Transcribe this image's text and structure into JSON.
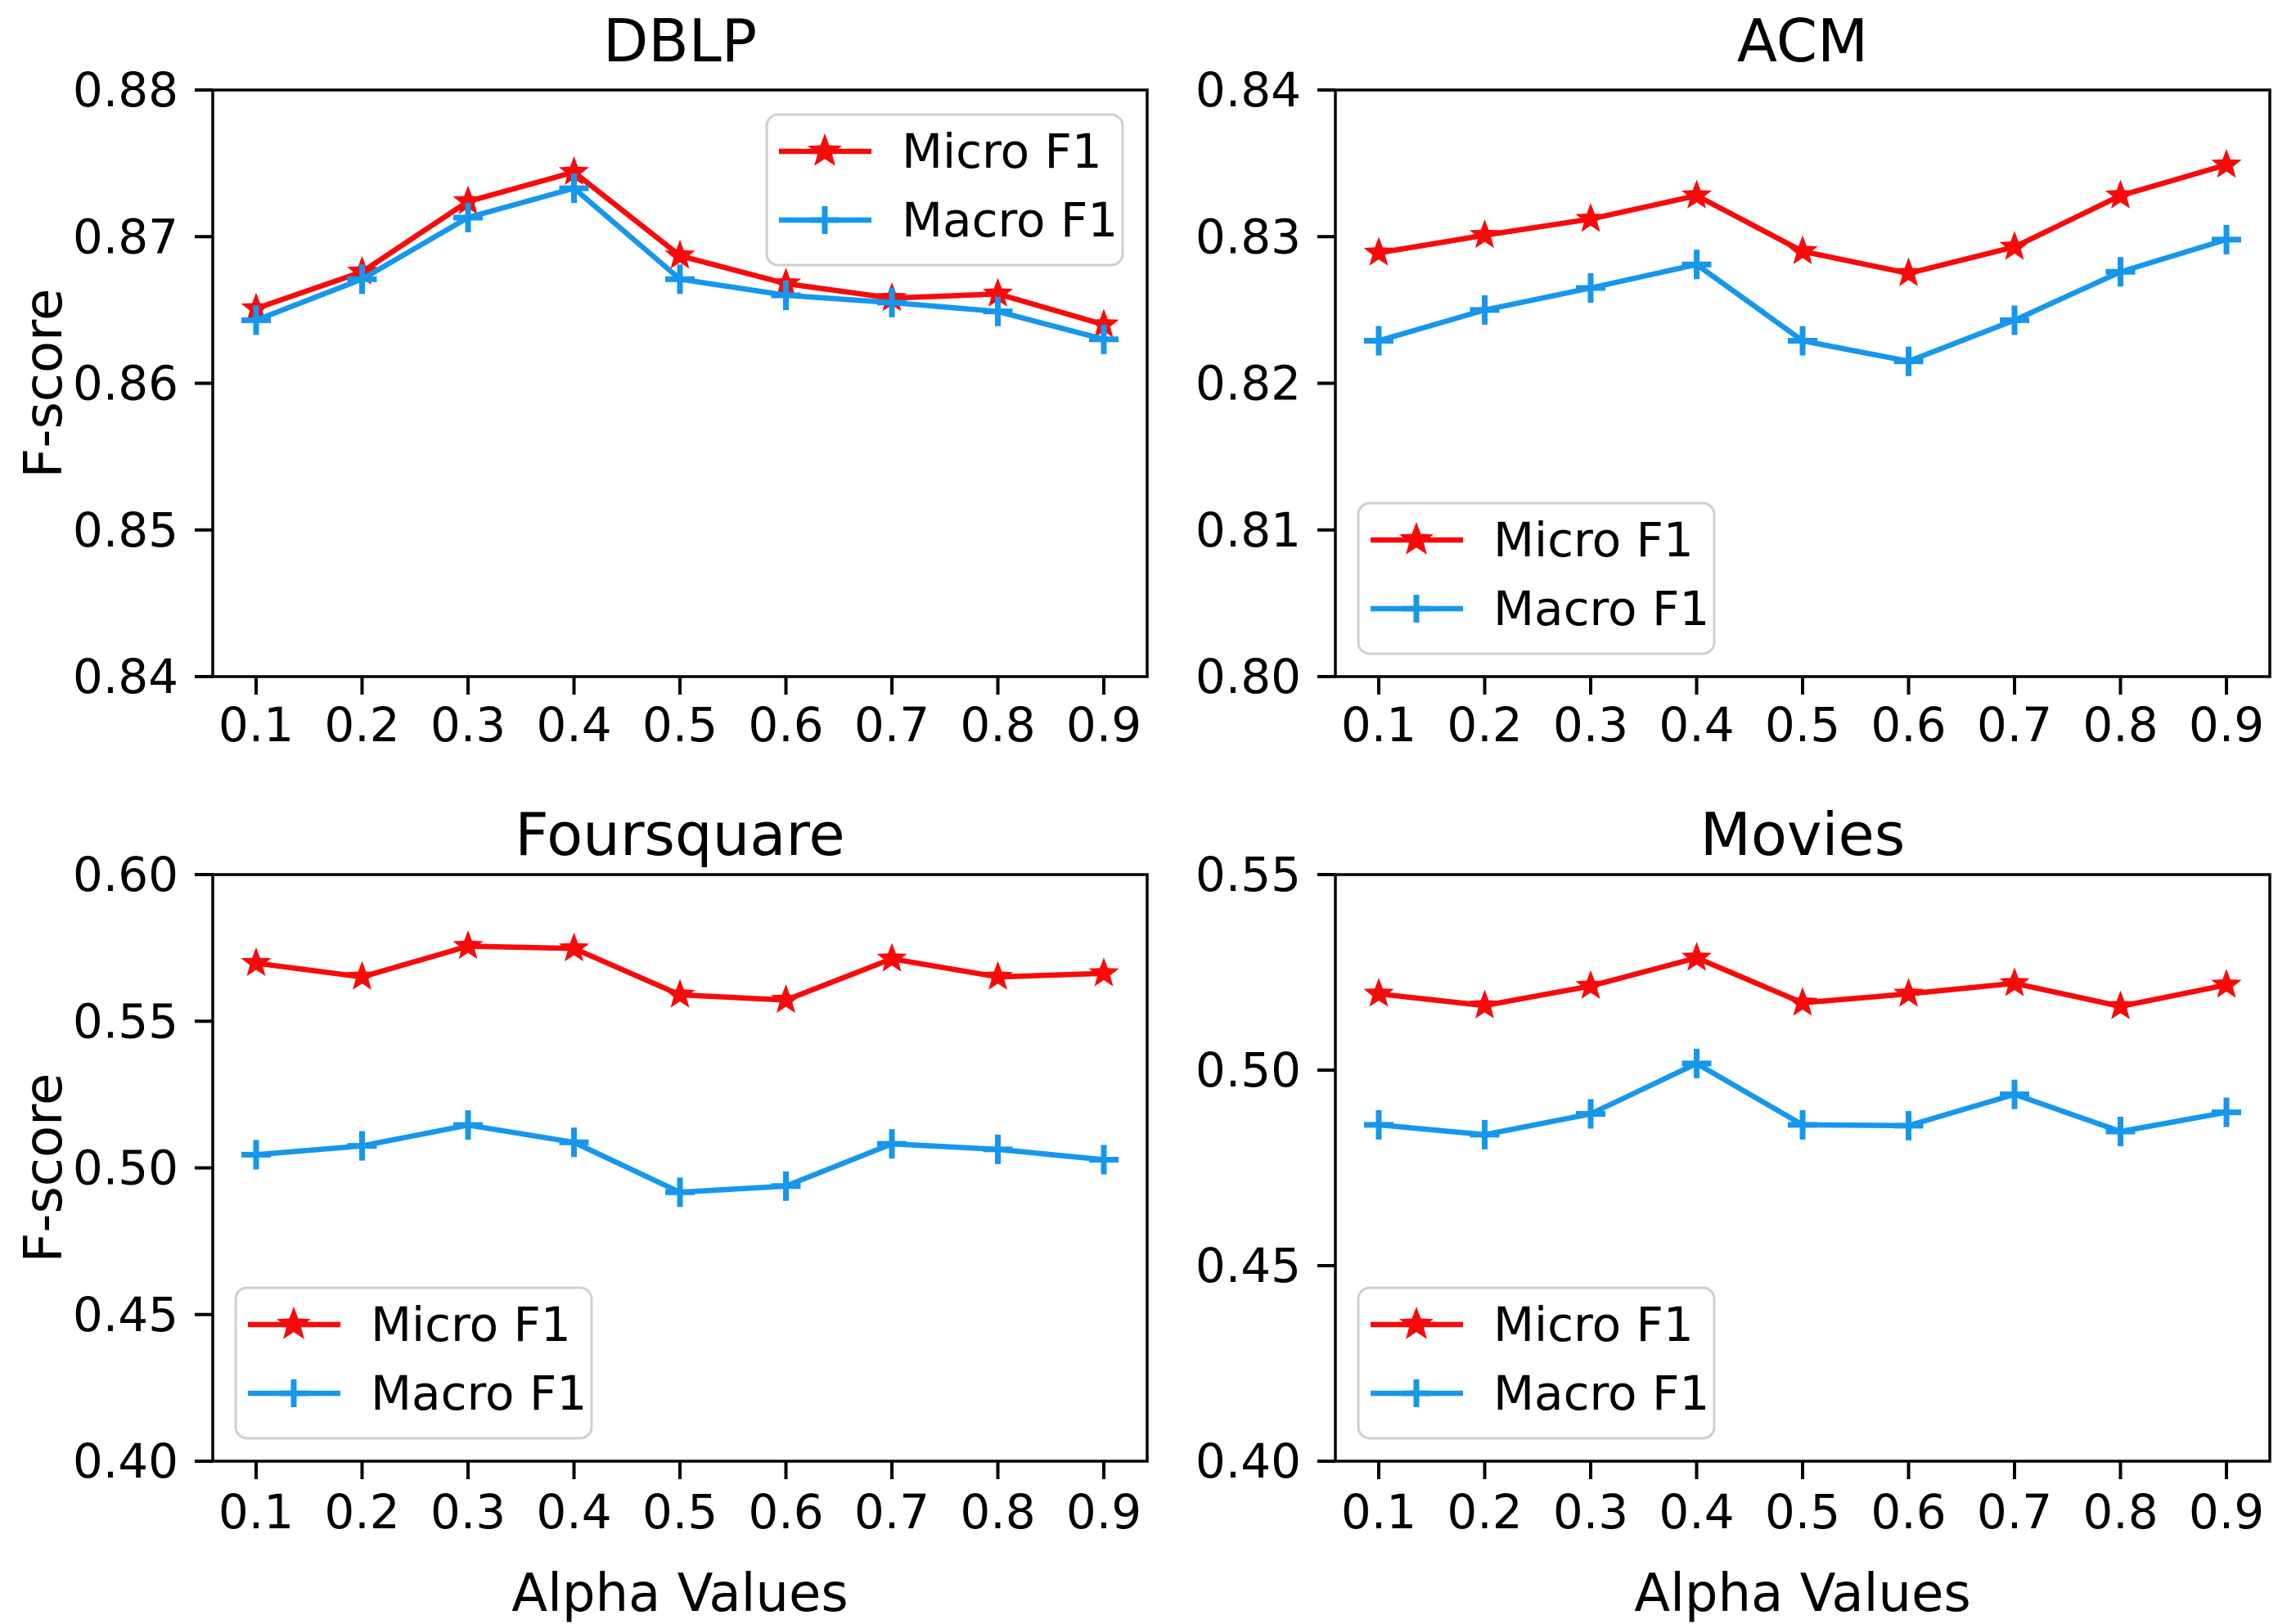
{
  "figure": {
    "ylabel": "F-score",
    "xlabel": "Alpha Values",
    "legend_labels": [
      "Micro F1",
      "Macro F1"
    ],
    "legend_marker_icons": [
      "star-marker-icon",
      "plus-marker-icon"
    ],
    "colors": {
      "micro_red": "#F90A0A",
      "macro_blue": "#1697EC",
      "axis_black": "#000000",
      "legend_border_gray": "#CFCFCF",
      "background": "#FFFFFF"
    }
  },
  "chart_data": [
    {
      "type": "line",
      "title": "DBLP",
      "x": [
        0.1,
        0.2,
        0.3,
        0.4,
        0.5,
        0.6,
        0.7,
        0.8,
        0.9
      ],
      "xtick_labels": [
        "0.1",
        "0.2",
        "0.3",
        "0.4",
        "0.5",
        "0.6",
        "0.7",
        "0.8",
        "0.9"
      ],
      "ylim": [
        0.84,
        0.88
      ],
      "yticks": [
        0.88,
        0.87,
        0.86,
        0.85,
        0.84
      ],
      "ytick_labels": [
        "0.88",
        "0.87",
        "0.86",
        "0.85",
        "0.84"
      ],
      "ylabel": "F-score",
      "xlabel": "",
      "grid": false,
      "legend_position": "upper right",
      "series": [
        {
          "name": "Micro F1",
          "marker": "star",
          "color": "micro_red",
          "values": [
            0.8651,
            0.8676,
            0.8724,
            0.8744,
            0.8687,
            0.8668,
            0.8658,
            0.8661,
            0.864
          ]
        },
        {
          "name": "Macro F1",
          "marker": "plus",
          "color": "macro_blue",
          "values": [
            0.8643,
            0.8671,
            0.8713,
            0.8733,
            0.8671,
            0.866,
            0.8655,
            0.8649,
            0.863
          ]
        }
      ]
    },
    {
      "type": "line",
      "title": "ACM",
      "x": [
        0.1,
        0.2,
        0.3,
        0.4,
        0.5,
        0.6,
        0.7,
        0.8,
        0.9
      ],
      "xtick_labels": [
        "0.1",
        "0.2",
        "0.3",
        "0.4",
        "0.5",
        "0.6",
        "0.7",
        "0.8",
        "0.9"
      ],
      "ylim": [
        0.8,
        0.84
      ],
      "yticks": [
        0.84,
        0.83,
        0.82,
        0.81,
        0.8
      ],
      "ytick_labels": [
        "0.84",
        "0.83",
        "0.82",
        "0.81",
        "0.80"
      ],
      "ylabel": "",
      "xlabel": "",
      "grid": false,
      "legend_position": "lower left",
      "series": [
        {
          "name": "Micro F1",
          "marker": "star",
          "color": "micro_red",
          "values": [
            0.8289,
            0.8301,
            0.8312,
            0.8328,
            0.829,
            0.8275,
            0.8293,
            0.8328,
            0.8349
          ]
        },
        {
          "name": "Macro F1",
          "marker": "plus",
          "color": "macro_blue",
          "values": [
            0.8229,
            0.825,
            0.8265,
            0.8281,
            0.8229,
            0.8215,
            0.8243,
            0.8276,
            0.8298
          ]
        }
      ]
    },
    {
      "type": "line",
      "title": "Foursquare",
      "x": [
        0.1,
        0.2,
        0.3,
        0.4,
        0.5,
        0.6,
        0.7,
        0.8,
        0.9
      ],
      "xtick_labels": [
        "0.1",
        "0.2",
        "0.3",
        "0.4",
        "0.5",
        "0.6",
        "0.7",
        "0.8",
        "0.9"
      ],
      "ylim": [
        0.4,
        0.6
      ],
      "yticks": [
        0.6,
        0.55,
        0.5,
        0.45,
        0.4
      ],
      "ytick_labels": [
        "0.60",
        "0.55",
        "0.50",
        "0.45",
        "0.40"
      ],
      "ylabel": "F-score",
      "xlabel": "Alpha Values",
      "grid": false,
      "legend_position": "lower left",
      "series": [
        {
          "name": "Micro F1",
          "marker": "star",
          "color": "micro_red",
          "values": [
            0.5698,
            0.5651,
            0.5756,
            0.5748,
            0.559,
            0.5572,
            0.5713,
            0.5651,
            0.5663
          ]
        },
        {
          "name": "Macro F1",
          "marker": "plus",
          "color": "macro_blue",
          "values": [
            0.5045,
            0.5075,
            0.5146,
            0.5087,
            0.4917,
            0.4938,
            0.5082,
            0.5063,
            0.5028
          ]
        }
      ]
    },
    {
      "type": "line",
      "title": "Movies",
      "x": [
        0.1,
        0.2,
        0.3,
        0.4,
        0.5,
        0.6,
        0.7,
        0.8,
        0.9
      ],
      "xtick_labels": [
        "0.1",
        "0.2",
        "0.3",
        "0.4",
        "0.5",
        "0.6",
        "0.7",
        "0.8",
        "0.9"
      ],
      "ylim": [
        0.4,
        0.55
      ],
      "yticks": [
        0.55,
        0.5,
        0.45,
        0.4
      ],
      "ytick_labels": [
        "0.55",
        "0.50",
        "0.45",
        "0.40"
      ],
      "ylabel": "",
      "xlabel": "Alpha Values",
      "grid": false,
      "legend_position": "lower left",
      "series": [
        {
          "name": "Micro F1",
          "marker": "star",
          "color": "micro_red",
          "values": [
            0.5195,
            0.5165,
            0.5215,
            0.5287,
            0.5172,
            0.5195,
            0.5222,
            0.5163,
            0.5218
          ]
        },
        {
          "name": "Macro F1",
          "marker": "plus",
          "color": "macro_blue",
          "values": [
            0.486,
            0.4835,
            0.4888,
            0.5017,
            0.486,
            0.4858,
            0.4938,
            0.4843,
            0.4892
          ]
        }
      ]
    }
  ]
}
